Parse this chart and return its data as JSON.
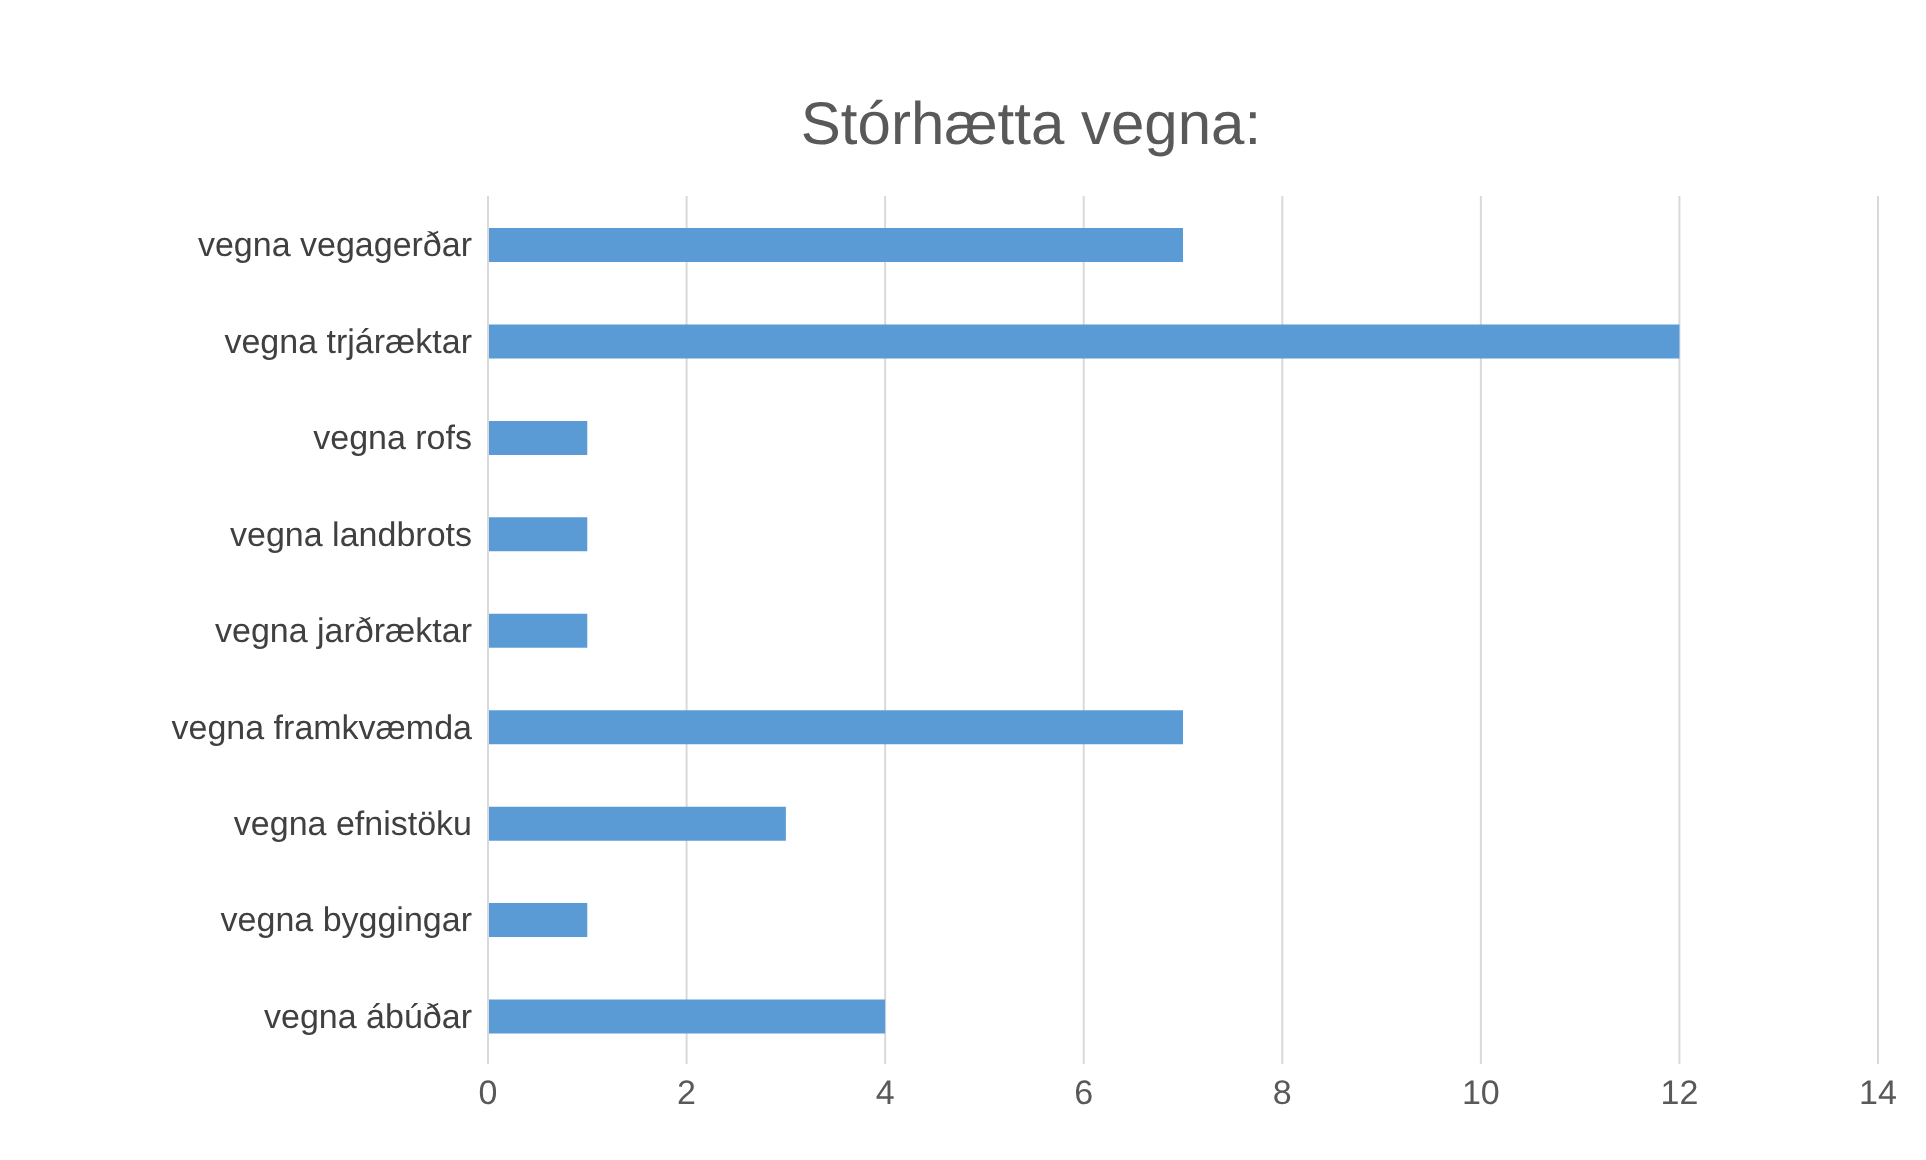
{
  "chart_data": {
    "type": "bar",
    "orientation": "horizontal",
    "title": "Stórhætta vegna:",
    "categories": [
      "vegna vegagerðar",
      "vegna trjáræktar",
      "vegna rofs",
      "vegna landbrots",
      "vegna jarðræktar",
      "vegna framkvæmda",
      "vegna efnistöku",
      "vegna byggingar",
      "vegna ábúðar"
    ],
    "values": [
      7,
      12,
      1,
      1,
      1,
      7,
      3,
      1,
      4
    ],
    "color": "#5b9bd5",
    "xlim": [
      0,
      14
    ],
    "xticks": [
      0,
      2,
      4,
      6,
      8,
      10,
      12,
      14
    ],
    "grid": "x"
  }
}
